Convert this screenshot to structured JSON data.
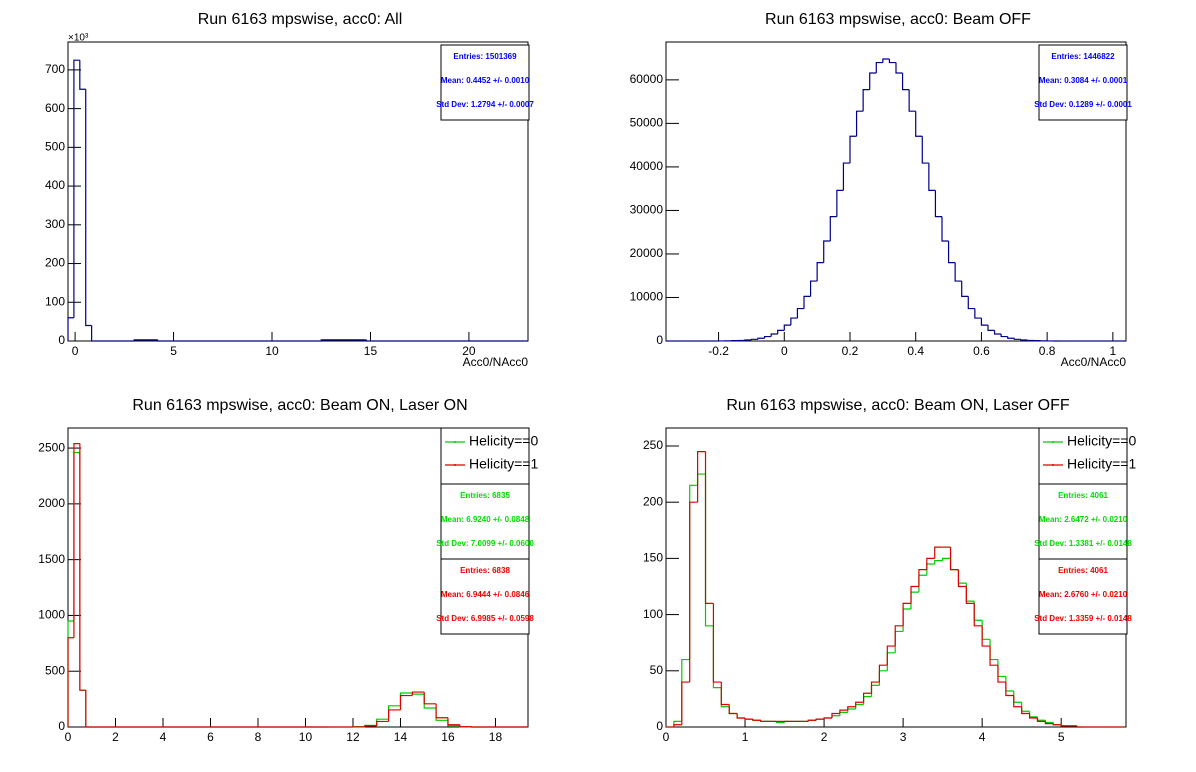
{
  "chart_data": [
    {
      "type": "histogram",
      "title": "Run 6163 mpswise, acc0: All",
      "x_label": "Acc0/NAcc0",
      "y_multiplier": "×10³",
      "bins": [
        -0.36,
        -0.06,
        0.24,
        0.54,
        0.84,
        3.0,
        4.2,
        12.5,
        14.8,
        23.0
      ],
      "values": [
        60,
        725,
        650,
        40,
        0,
        3,
        0,
        3,
        0
      ],
      "color": "#00008b",
      "xlim": [
        -0.36,
        23.0
      ],
      "ylim": [
        0,
        772
      ],
      "xticks": [
        0,
        5,
        10,
        15,
        20
      ],
      "yticks": [
        0,
        100,
        200,
        300,
        400,
        500,
        600,
        700
      ],
      "stats": [
        {
          "color": "#0000ff",
          "lines": [
            "Entries: 1501369",
            "Mean: 0.4452 +/- 0.0010",
            "Std Dev: 1.2794 +/- 0.0007"
          ]
        }
      ]
    },
    {
      "type": "histogram",
      "title": "Run 6163 mpswise, acc0: Beam OFF",
      "x_label": "Acc0/NAcc0",
      "bins": [
        -0.36,
        -0.34,
        -0.32,
        -0.3,
        -0.28,
        -0.26,
        -0.24,
        -0.22,
        -0.2,
        -0.18,
        -0.16,
        -0.14,
        -0.12,
        -0.1,
        -0.08,
        -0.06,
        -0.04,
        -0.02,
        0,
        0.02,
        0.04,
        0.06,
        0.08,
        0.1,
        0.12,
        0.14,
        0.16,
        0.18,
        0.2,
        0.22,
        0.24,
        0.26,
        0.28,
        0.3,
        0.32,
        0.34,
        0.36,
        0.38,
        0.4,
        0.42,
        0.44,
        0.46,
        0.48,
        0.5,
        0.52,
        0.54,
        0.56,
        0.58,
        0.6,
        0.62,
        0.64,
        0.66,
        0.68,
        0.7,
        0.72,
        0.74,
        0.76,
        0.78,
        0.8,
        0.82,
        0.84,
        0.86,
        0.88,
        0.9,
        0.92,
        0.94,
        0.96,
        0.98,
        1.0,
        1.02,
        1.04
      ],
      "values": [
        0,
        0,
        0,
        0,
        0,
        0,
        0,
        0,
        20,
        40,
        80,
        130,
        230,
        390,
        640,
        1020,
        1600,
        2440,
        3640,
        5270,
        7450,
        10260,
        13770,
        18010,
        22980,
        28570,
        34610,
        40880,
        47050,
        52800,
        57750,
        61570,
        63980,
        64800,
        63980,
        61570,
        57750,
        52800,
        47050,
        40880,
        34610,
        28570,
        22980,
        18010,
        13770,
        10260,
        7450,
        5270,
        3640,
        2440,
        1600,
        1020,
        640,
        390,
        230,
        130,
        80,
        40,
        20,
        0,
        0,
        0,
        0,
        0,
        0,
        0,
        0,
        0,
        0,
        0
      ],
      "color": "#00008b",
      "xlim": [
        -0.36,
        1.04
      ],
      "ylim": [
        0,
        68700
      ],
      "xticks": [
        -0.2,
        0,
        0.2,
        0.4,
        0.6,
        0.8,
        1
      ],
      "yticks": [
        0,
        10000,
        20000,
        30000,
        40000,
        50000,
        60000
      ],
      "stats": [
        {
          "color": "#0000ff",
          "lines": [
            "Entries: 1446822",
            "Mean: 0.3084 +/- 0.0001",
            "Std Dev: 0.1289 +/- 0.0001"
          ]
        }
      ]
    },
    {
      "type": "histogram",
      "title": "Run 6163 mpswise, acc0: Beam ON, Laser ON",
      "bins": [
        0,
        0.25,
        0.5,
        0.75,
        1.0,
        11.0,
        11.5,
        12.0,
        12.5,
        13.0,
        13.5,
        14.0,
        14.5,
        15.0,
        15.5,
        16.0,
        16.5,
        17.0,
        19.37
      ],
      "series": [
        {
          "name": "Helicity==0",
          "color": "#00cc00",
          "values": [
            950,
            2460,
            330,
            0,
            0,
            0,
            0,
            2,
            15,
            70,
            190,
            305,
            295,
            170,
            60,
            12,
            2,
            0
          ]
        },
        {
          "name": "Helicity==1",
          "color": "#dd0000",
          "values": [
            800,
            2540,
            330,
            0,
            0,
            0,
            0,
            1,
            10,
            50,
            153,
            282,
            313,
            208,
            83,
            20,
            3,
            0
          ]
        }
      ],
      "legend": "upper right",
      "xlim": [
        0,
        19.37
      ],
      "ylim": [
        0,
        2680
      ],
      "xticks": [
        0,
        2,
        4,
        6,
        8,
        10,
        12,
        14,
        16,
        18
      ],
      "yticks": [
        0,
        500,
        1000,
        1500,
        2000,
        2500
      ],
      "stats": [
        {
          "color": "#00dd00",
          "lines": [
            "Entries: 6835",
            "Mean: 6.9240 +/- 0.0848",
            "Std Dev: 7.0099 +/- 0.0600"
          ]
        },
        {
          "color": "#ee0000",
          "lines": [
            "Entries: 6838",
            "Mean: 6.9444 +/- 0.0846",
            "Std Dev: 6.9985 +/- 0.0598"
          ]
        }
      ]
    },
    {
      "type": "histogram",
      "title": "Run 6163 mpswise, acc0: Beam ON, Laser OFF",
      "bins": [
        0,
        0.1,
        0.2,
        0.3,
        0.4,
        0.5,
        0.6,
        0.7,
        0.8,
        0.9,
        1.0,
        1.1,
        1.2,
        1.3,
        1.4,
        1.5,
        1.6,
        1.7,
        1.8,
        1.9,
        2.0,
        2.1,
        2.2,
        2.3,
        2.4,
        2.5,
        2.6,
        2.7,
        2.8,
        2.9,
        3.0,
        3.1,
        3.2,
        3.3,
        3.4,
        3.5,
        3.6,
        3.7,
        3.8,
        3.9,
        4.0,
        4.1,
        4.2,
        4.3,
        4.4,
        4.5,
        4.6,
        4.7,
        4.8,
        4.9,
        5.0,
        5.1,
        5.2,
        5.3,
        5.4,
        5.5,
        5.6,
        5.7,
        5.8
      ],
      "series": [
        {
          "name": "Helicity==0",
          "color": "#00cc00",
          "values": [
            0,
            5,
            60,
            215,
            225,
            90,
            35,
            18,
            12,
            8,
            7,
            6,
            5,
            5,
            4,
            5,
            5,
            5,
            6,
            7,
            8,
            10,
            13,
            16,
            20,
            27,
            37,
            50,
            66,
            85,
            105,
            120,
            135,
            145,
            148,
            150,
            140,
            128,
            112,
            95,
            78,
            60,
            45,
            32,
            22,
            14,
            9,
            6,
            4,
            2,
            1,
            1,
            0,
            0,
            0,
            0,
            0,
            0
          ]
        },
        {
          "name": "Helicity==1",
          "color": "#dd0000",
          "values": [
            0,
            2,
            40,
            200,
            245,
            110,
            40,
            20,
            12,
            8,
            7,
            6,
            5,
            5,
            5,
            5,
            5,
            5,
            6,
            7,
            8,
            12,
            15,
            18,
            22,
            30,
            40,
            55,
            72,
            90,
            110,
            125,
            140,
            150,
            160,
            160,
            140,
            125,
            110,
            90,
            72,
            55,
            40,
            28,
            18,
            12,
            8,
            5,
            3,
            2,
            1,
            1,
            0,
            0,
            0,
            0,
            0,
            0
          ]
        }
      ],
      "legend": "upper right",
      "xlim": [
        0,
        5.82
      ],
      "ylim": [
        0,
        266
      ],
      "xticks": [
        0,
        1,
        2,
        3,
        4,
        5
      ],
      "yticks": [
        0,
        50,
        100,
        150,
        200,
        250
      ],
      "stats": [
        {
          "color": "#00dd00",
          "lines": [
            "Entries: 4061",
            "Mean: 2.6472 +/- 0.0210",
            "Std Dev: 1.3381 +/- 0.0148"
          ]
        },
        {
          "color": "#ee0000",
          "lines": [
            "Entries: 4061",
            "Mean: 2.6760 +/- 0.0210",
            "Std Dev: 1.3359 +/- 0.0148"
          ]
        }
      ]
    }
  ]
}
